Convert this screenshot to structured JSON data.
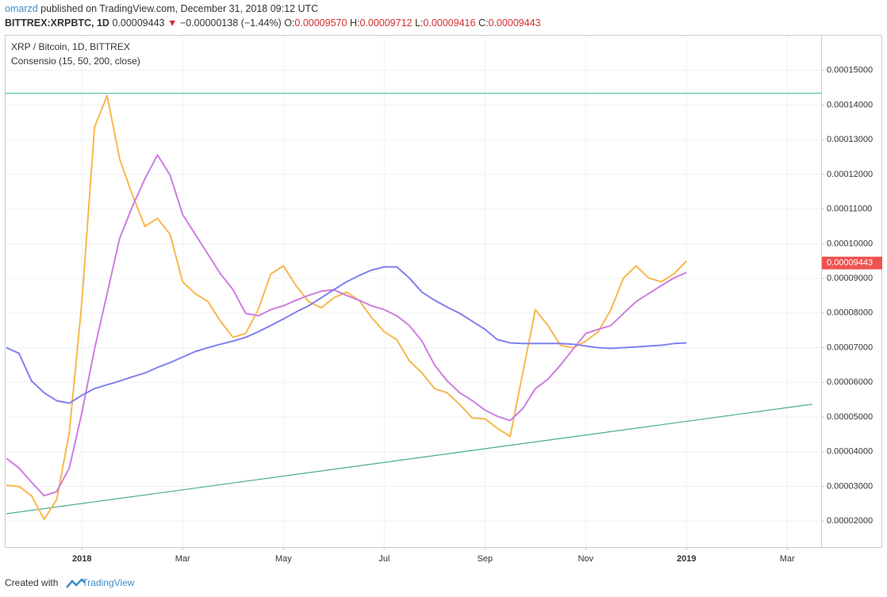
{
  "header": {
    "author": "omarzd",
    "published": "published on TradingView.com, December 31, 2018 09:12 UTC",
    "symbol": "BITTREX:XRPBTC, 1D",
    "price": "0.00009443",
    "arrow": "▼",
    "change": "−0.00000138 (−1.44%)",
    "ohlc": [
      {
        "label": "O:",
        "value": "0.00009570"
      },
      {
        "label": "H:",
        "value": "0.00009712"
      },
      {
        "label": "L:",
        "value": "0.00009416"
      },
      {
        "label": "C:",
        "value": "0.00009443"
      }
    ]
  },
  "legend": {
    "instrument": "XRP / Bitcoin, 1D, BITTREX",
    "indicator": "Consensio (15, 50, 200, close)"
  },
  "footer": {
    "created": "Created with",
    "brand": "TradingView"
  },
  "chart_data": {
    "type": "line",
    "categories": [
      null,
      null,
      null,
      null,
      null,
      null,
      "2018",
      null,
      null,
      null,
      null,
      null,
      null,
      null,
      "Mar",
      null,
      null,
      null,
      null,
      null,
      null,
      null,
      "May",
      null,
      null,
      null,
      null,
      null,
      null,
      null,
      "Jul",
      null,
      null,
      null,
      null,
      null,
      null,
      null,
      "Sep",
      null,
      null,
      null,
      null,
      null,
      null,
      null,
      "Nov",
      null,
      null,
      null,
      null,
      null,
      null,
      null,
      "2019",
      null,
      null,
      null,
      null,
      null,
      null,
      null,
      "Mar",
      null,
      null
    ],
    "series": [
      {
        "color": "#f7b84b",
        "values": [
          3.03e-05,
          3e-05,
          2.73e-05,
          2.05e-05,
          2.62e-05,
          4.56e-05,
          8.33e-05,
          0.0001336,
          0.0001427,
          0.0001244,
          0.0001141,
          0.000105,
          0.0001073,
          0.0001027,
          8.9e-05,
          8.56e-05,
          8.33e-05,
          7.76e-05,
          7.3e-05,
          7.41e-05,
          8.1e-05,
          9.13e-05,
          9.36e-05,
          8.79e-05,
          8.33e-05,
          8.15e-05,
          8.44e-05,
          8.6e-05,
          8.37e-05,
          7.87e-05,
          7.46e-05,
          7.23e-05,
          6.62e-05,
          6.27e-05,
          5.82e-05,
          5.7e-05,
          5.36e-05,
          4.97e-05,
          4.95e-05,
          4.67e-05,
          4.44e-05,
          6.27e-05,
          8.1e-05,
          7.64e-05,
          7.07e-05,
          7e-05,
          7.19e-05,
          7.46e-05,
          8.1e-05,
          9.01e-05,
          9.36e-05,
          9.01e-05,
          8.9e-05,
          9.13e-05,
          9.5e-05,
          null,
          null,
          null,
          null,
          null,
          null,
          null,
          null,
          null,
          null
        ]
      },
      {
        "color": "#ce7ee0",
        "values": [
          3.81e-05,
          3.53e-05,
          3.12e-05,
          2.73e-05,
          2.85e-05,
          3.53e-05,
          5.13e-05,
          6.96e-05,
          8.56e-05,
          0.0001016,
          0.0001107,
          0.0001187,
          0.0001256,
          0.0001198,
          0.0001084,
          0.0001027,
          9.7e-05,
          9.13e-05,
          8.67e-05,
          7.99e-05,
          7.92e-05,
          8.1e-05,
          8.21e-05,
          8.37e-05,
          8.51e-05,
          8.63e-05,
          8.67e-05,
          8.51e-05,
          8.37e-05,
          8.21e-05,
          8.1e-05,
          7.92e-05,
          7.64e-05,
          7.19e-05,
          6.5e-05,
          6.04e-05,
          5.7e-05,
          5.47e-05,
          5.2e-05,
          5.02e-05,
          4.9e-05,
          5.24e-05,
          5.82e-05,
          6.09e-05,
          6.5e-05,
          6.96e-05,
          7.41e-05,
          7.53e-05,
          7.64e-05,
          7.99e-05,
          8.33e-05,
          8.56e-05,
          8.79e-05,
          9.01e-05,
          9.17e-05,
          null,
          null,
          null,
          null,
          null,
          null,
          null,
          null,
          null,
          null
        ]
      },
      {
        "color": "#8080f0",
        "values": [
          7e-05,
          6.84e-05,
          6.04e-05,
          5.7e-05,
          5.47e-05,
          5.4e-05,
          5.63e-05,
          5.82e-05,
          5.93e-05,
          6.04e-05,
          6.16e-05,
          6.27e-05,
          6.43e-05,
          6.57e-05,
          6.73e-05,
          6.89e-05,
          7e-05,
          7.1e-05,
          7.19e-05,
          7.3e-05,
          7.46e-05,
          7.64e-05,
          7.83e-05,
          8.03e-05,
          8.21e-05,
          8.44e-05,
          8.67e-05,
          8.9e-05,
          9.08e-05,
          9.24e-05,
          9.33e-05,
          9.33e-05,
          9.01e-05,
          8.6e-05,
          8.37e-05,
          8.17e-05,
          7.99e-05,
          7.76e-05,
          7.53e-05,
          7.23e-05,
          7.14e-05,
          7.12e-05,
          7.12e-05,
          7.12e-05,
          7.12e-05,
          7.1e-05,
          7.05e-05,
          7e-05,
          6.98e-05,
          7e-05,
          7.02e-05,
          7.05e-05,
          7.07e-05,
          7.12e-05,
          7.14e-05,
          null,
          null,
          null,
          null,
          null,
          null,
          null,
          null,
          null,
          null
        ]
      }
    ],
    "hline": {
      "value": 0.0001434,
      "color": "#5cc2a8"
    },
    "trendline": {
      "values": [
        2.21e-05,
        5.37e-05
      ],
      "color": "#4aab93"
    },
    "last_price": {
      "value": 9.443e-05,
      "label": "0.00009443",
      "color": "#ef5350"
    },
    "ylim": [
      1.25e-05,
      0.00016
    ],
    "yticks": [
      {
        "value": 2e-05,
        "label": "0.00002000"
      },
      {
        "value": 3e-05,
        "label": "0.00003000"
      },
      {
        "value": 4e-05,
        "label": "0.00004000"
      },
      {
        "value": 5e-05,
        "label": "0.00005000"
      },
      {
        "value": 6e-05,
        "label": "0.00006000"
      },
      {
        "value": 7e-05,
        "label": "0.00007000"
      },
      {
        "value": 8e-05,
        "label": "0.00008000"
      },
      {
        "value": 9e-05,
        "label": "0.00009000"
      },
      {
        "value": 0.0001,
        "label": "0.00010000"
      },
      {
        "value": 0.00011,
        "label": "0.00011000"
      },
      {
        "value": 0.00012,
        "label": "0.00012000"
      },
      {
        "value": 0.00013,
        "label": "0.00013000"
      },
      {
        "value": 0.00014,
        "label": "0.00014000"
      },
      {
        "value": 0.00015,
        "label": "0.00015000"
      }
    ],
    "grid": true
  }
}
